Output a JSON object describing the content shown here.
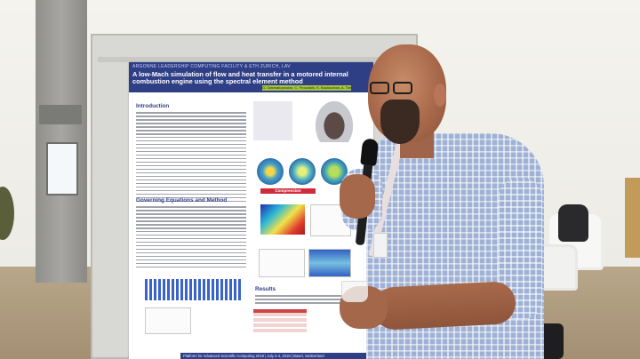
{
  "poster": {
    "org": "ARGONNE LEADERSHIP COMPUTING FACILITY & ETH ZURICH, LAV",
    "title": "A low-Mach simulation of flow and heat transfer in a motored internal combustion engine using the spectral element method",
    "authors": "G. Giannakopoulos, C. Frouzakis, K. Boulouchos, A. Tomboulides, P. Fischer",
    "sections": {
      "introduction": "Introduction",
      "governing": "Governing Equations and Method",
      "results": "Results",
      "compression": "Compression"
    },
    "footer": "Platform for Advanced Scientific Computing 2018 | July 2-4, 2018 | Basel, Switzerland"
  },
  "colors": {
    "poster_header": "#2f3f86",
    "author_bar": "#a4c53a",
    "compression_bar": "#d02b3c",
    "shirt": "#9fb2d6"
  }
}
